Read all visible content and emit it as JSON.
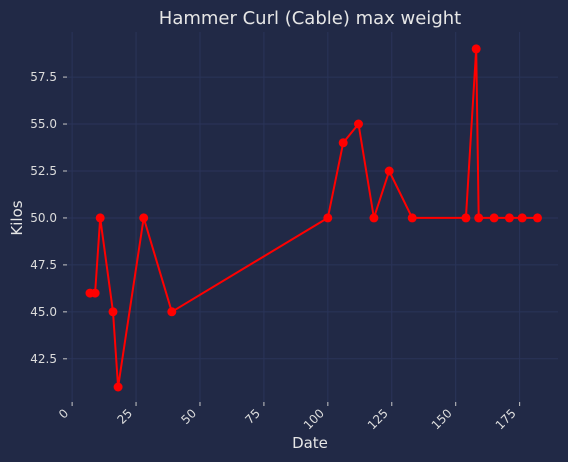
{
  "chart_data": {
    "type": "line",
    "title": "Hammer Curl (Cable) max weight",
    "xlabel": "Date",
    "ylabel": "Kilos",
    "xlim": [
      -2,
      190
    ],
    "ylim": [
      40.2,
      59.9
    ],
    "xticks": [
      0,
      25,
      50,
      75,
      100,
      125,
      150,
      175
    ],
    "yticks": [
      42.5,
      45.0,
      47.5,
      50.0,
      52.5,
      55.0,
      57.5
    ],
    "xtick_labels": [
      "0",
      "25",
      "50",
      "75",
      "100",
      "125",
      "150",
      "175"
    ],
    "ytick_labels": [
      "42.5",
      "45.0",
      "47.5",
      "50.0",
      "52.5",
      "55.0",
      "57.5"
    ],
    "grid": true,
    "colors": {
      "background": "#212946",
      "grid": "#2a3459",
      "series": "#ff0000"
    },
    "series": [
      {
        "x": [
          7,
          9,
          11,
          16,
          18,
          28,
          39,
          100,
          106,
          112,
          118,
          124,
          133,
          154,
          158,
          159,
          165,
          171,
          176,
          182
        ],
        "y": [
          46.0,
          46.0,
          50.0,
          45.0,
          41.0,
          50.0,
          45.0,
          50.0,
          54.0,
          55.0,
          50.0,
          52.5,
          50.0,
          50.0,
          59.0,
          50.0,
          50.0,
          50.0,
          50.0,
          50.0
        ]
      }
    ]
  }
}
